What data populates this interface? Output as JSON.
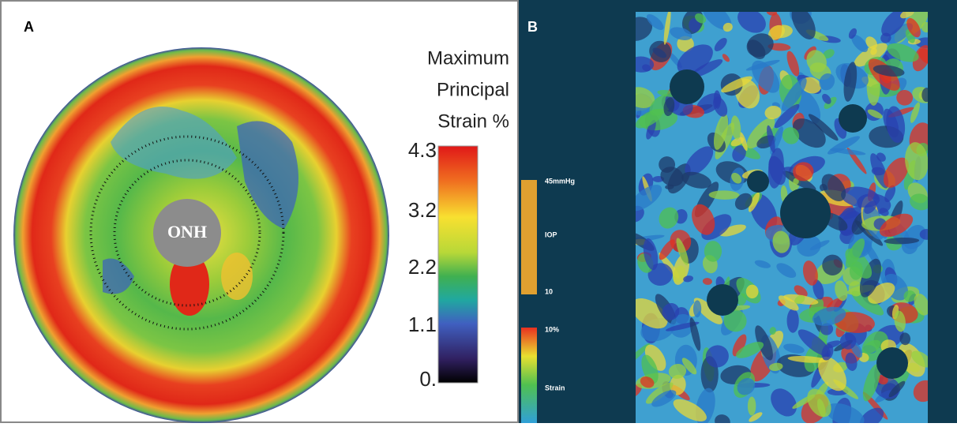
{
  "panel_a": {
    "label": "A",
    "legend_title": [
      "Maximum",
      "Principal",
      "Strain %"
    ],
    "ticks": [
      "4.3",
      "3.2",
      "2.2",
      "1.1",
      "0."
    ],
    "center_label": "ONH"
  },
  "panel_b": {
    "label": "B",
    "iop_top": "45mmHg",
    "iop_label": "IOP",
    "iop_bottom": "10",
    "strain_top": "10%",
    "strain_label": "Strain"
  }
}
